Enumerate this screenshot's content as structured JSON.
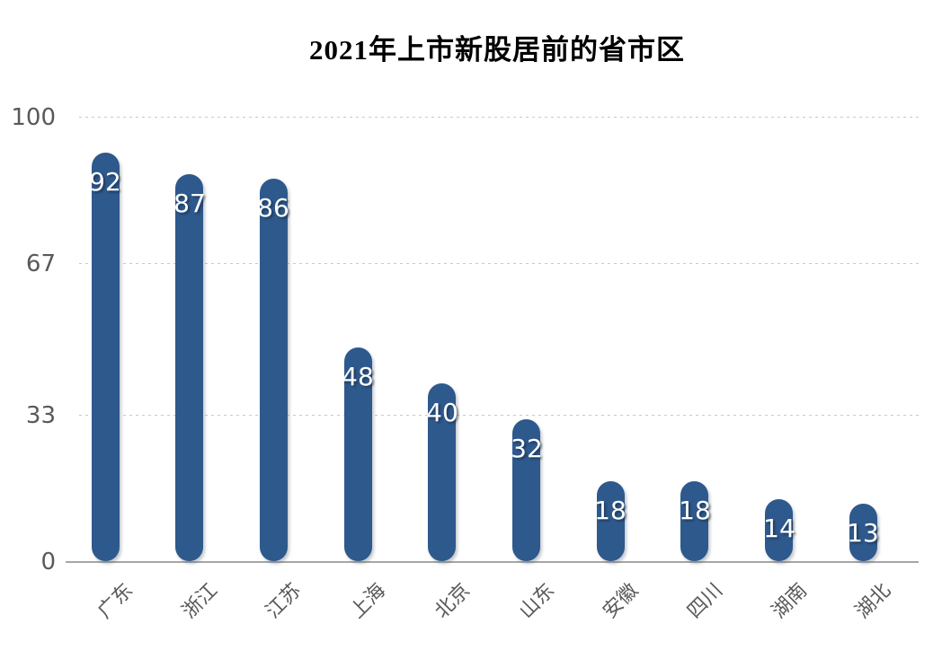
{
  "title": "2021年上市新股居前的省市区",
  "chart_data": {
    "type": "bar",
    "title": "2021年上市新股居前的省市区",
    "categories": [
      "广东",
      "浙江",
      "江苏",
      "上海",
      "北京",
      "山东",
      "安徽",
      "四川",
      "湖南",
      "湖北"
    ],
    "values": [
      92,
      87,
      86,
      48,
      40,
      32,
      18,
      18,
      14,
      13
    ],
    "xlabel": "",
    "ylabel": "",
    "ylim": [
      0,
      100
    ],
    "yticks": [
      0,
      33,
      67,
      100
    ],
    "grid": "horizontal-dotted",
    "legend": "none",
    "bar_shape": "capsule",
    "colors": {
      "bar": "#2e598c",
      "value_label": "#ffffff",
      "axis_text": "#595959",
      "gridline": "#c9c9c9",
      "axis_line": "#a6a6a6",
      "title_text": "#000000",
      "background": "#ffffff"
    }
  }
}
